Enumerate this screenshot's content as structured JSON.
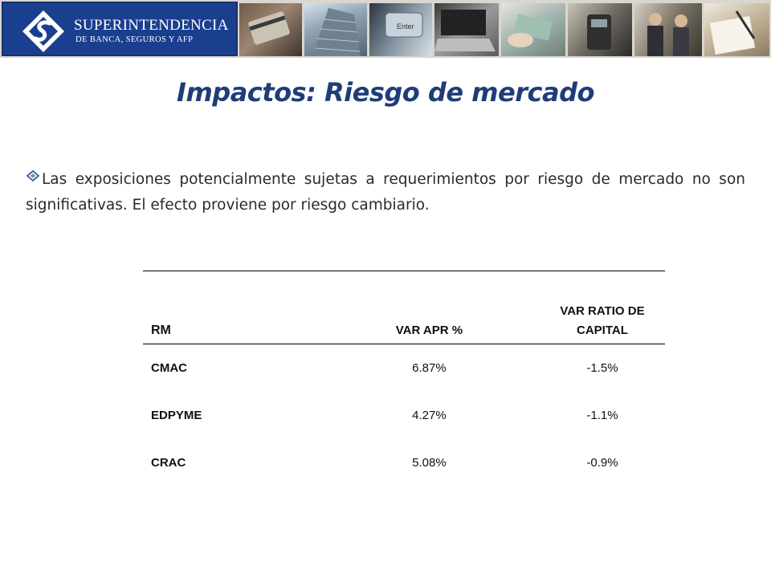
{
  "header": {
    "logo": {
      "name_line1": "SUPERINTENDENCIA",
      "name_line2": "DE BANCA, SEGUROS Y AFP"
    },
    "photos": [
      "card-payment-photo",
      "bank-building-photo",
      "keyboard-enter-key-photo",
      "laptop-typing-photo",
      "handshake-money-photo",
      "card-terminal-photo",
      "business-meeting-photo",
      "signing-document-photo"
    ]
  },
  "title": "Impactos: Riesgo de mercado",
  "bullet": {
    "text": "Las exposiciones potencialmente sujetas a requerimientos por riesgo de mercado no son significativas. El efecto proviene por riesgo cambiario."
  },
  "table": {
    "headers": [
      "RM",
      "VAR APR %",
      "VAR RATIO DE CAPITAL"
    ],
    "rows": [
      [
        "CMAC",
        "6.87%",
        "-1.5%"
      ],
      [
        "EDPYME",
        "4.27%",
        "-1.1%"
      ],
      [
        "CRAC",
        "5.08%",
        "-0.9%"
      ]
    ]
  },
  "colors": {
    "title": "#1f3d78",
    "logo_background": "#1b3f8f",
    "text": "#2a2a2a"
  }
}
